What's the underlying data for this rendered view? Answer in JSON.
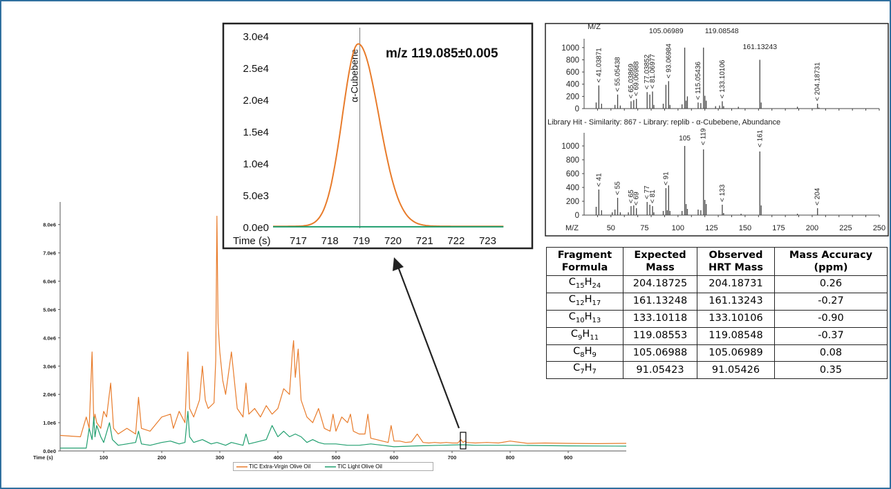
{
  "chart_data": [
    {
      "type": "line",
      "xlabel": "Time (s)",
      "xlim": [
        25,
        1000
      ],
      "ylim": [
        0,
        8800000
      ],
      "xticks": [
        "100",
        "200",
        "300",
        "400",
        "500",
        "600",
        "700",
        "800",
        "900"
      ],
      "yticks": [
        "0.0e0",
        "1.0e6",
        "2.0e6",
        "3.0e6",
        "4.0e6",
        "5.0e6",
        "6.0e6",
        "7.0e6",
        "8.0e6"
      ],
      "series": [
        {
          "name": "TIC Extra-Virgin Olive Oil",
          "color": "#e87b2a",
          "x": [
            25,
            60,
            70,
            75,
            80,
            83,
            85,
            88,
            95,
            100,
            105,
            112,
            117,
            125,
            140,
            155,
            160,
            165,
            180,
            200,
            215,
            220,
            230,
            240,
            245,
            248,
            255,
            265,
            270,
            275,
            280,
            290,
            293,
            295,
            297,
            300,
            305,
            310,
            320,
            330,
            340,
            345,
            350,
            360,
            370,
            380,
            390,
            400,
            410,
            420,
            425,
            427,
            430,
            435,
            440,
            450,
            460,
            470,
            480,
            490,
            495,
            500,
            510,
            520,
            525,
            530,
            540,
            550,
            555,
            560,
            570,
            580,
            590,
            595,
            600,
            610,
            620,
            630,
            640,
            650,
            660,
            670,
            680,
            690,
            700,
            710,
            715,
            719,
            722,
            725,
            740,
            760,
            780,
            800,
            830,
            860,
            900,
            950,
            1000
          ],
          "y": [
            550000,
            500000,
            1200000,
            800000,
            3500000,
            1000000,
            1300000,
            1000000,
            800000,
            1400000,
            1200000,
            2400000,
            800000,
            600000,
            800000,
            600000,
            1900000,
            800000,
            700000,
            1200000,
            1300000,
            800000,
            1400000,
            1000000,
            3500000,
            1500000,
            1200000,
            1800000,
            3000000,
            1800000,
            1500000,
            1700000,
            3200000,
            8300000,
            4500000,
            3500000,
            2500000,
            2000000,
            3500000,
            1500000,
            1200000,
            2400000,
            1300000,
            1500000,
            1200000,
            1600000,
            1300000,
            1500000,
            2200000,
            2000000,
            3500000,
            3900000,
            2600000,
            3600000,
            1800000,
            1200000,
            1000000,
            1500000,
            800000,
            700000,
            1300000,
            700000,
            1200000,
            1000000,
            1300000,
            700000,
            600000,
            600000,
            1300000,
            450000,
            400000,
            350000,
            300000,
            900000,
            350000,
            350000,
            300000,
            320000,
            600000,
            300000,
            280000,
            300000,
            280000,
            300000,
            280000,
            280000,
            400000,
            300000,
            350000,
            300000,
            280000,
            300000,
            280000,
            350000,
            270000,
            280000,
            270000,
            260000,
            270000
          ]
        },
        {
          "name": "TIC Light Olive Oil",
          "color": "#1f9e6e",
          "x": [
            25,
            70,
            75,
            80,
            83,
            85,
            88,
            95,
            100,
            110,
            115,
            125,
            140,
            155,
            160,
            165,
            180,
            200,
            215,
            230,
            240,
            245,
            248,
            255,
            270,
            285,
            295,
            310,
            320,
            330,
            340,
            345,
            350,
            370,
            380,
            390,
            400,
            410,
            420,
            430,
            440,
            450,
            460,
            470,
            480,
            500,
            520,
            540,
            560,
            580,
            600,
            640,
            680,
            719,
            740,
            800,
            900,
            1000
          ],
          "y": [
            100000,
            100000,
            800000,
            400000,
            1200000,
            500000,
            900000,
            500000,
            300000,
            1000000,
            400000,
            200000,
            250000,
            300000,
            700000,
            250000,
            200000,
            300000,
            350000,
            250000,
            300000,
            1400000,
            500000,
            300000,
            400000,
            250000,
            300000,
            200000,
            300000,
            250000,
            200000,
            600000,
            250000,
            350000,
            400000,
            900000,
            500000,
            700000,
            500000,
            600000,
            500000,
            300000,
            400000,
            300000,
            250000,
            250000,
            200000,
            200000,
            250000,
            200000,
            150000,
            180000,
            200000,
            220000,
            200000,
            200000,
            180000,
            170000
          ]
        }
      ]
    },
    {
      "type": "line",
      "title": "m/z 119.085±0.005",
      "xlabel": "Time (s)",
      "xticks": [
        "717",
        "718",
        "719",
        "720",
        "721",
        "722",
        "723"
      ],
      "yticks": [
        "0.0e0",
        "5.0e3",
        "1.0e4",
        "1.5e4",
        "2.0e4",
        "2.5e4",
        "3.0e4"
      ],
      "xlim": [
        716.2,
        723.8
      ],
      "ylim": [
        0,
        31000
      ],
      "marker": {
        "x": 718.95,
        "label": "α-Cubebene"
      },
      "series": [
        {
          "color": "#e87b2a",
          "peak_center": 718.9,
          "peak_height": 28700,
          "peak_sigma_left": 0.5,
          "peak_sigma_right": 0.65,
          "baseline": 200
        },
        {
          "color": "#1f9e6e",
          "constant": 120
        }
      ]
    },
    {
      "type": "bar",
      "subtype": "mass-spectrum",
      "yticks": [
        "0",
        "200",
        "400",
        "600",
        "800",
        "1000"
      ],
      "xlim": [
        30,
        250
      ],
      "ylim": [
        0,
        1100
      ],
      "bars": [
        [
          39,
          100
        ],
        [
          41,
          380
        ],
        [
          43,
          80
        ],
        [
          53,
          60
        ],
        [
          55,
          230
        ],
        [
          57,
          50
        ],
        [
          65,
          120
        ],
        [
          67,
          140
        ],
        [
          69,
          160
        ],
        [
          77,
          270
        ],
        [
          79,
          230
        ],
        [
          81,
          280
        ],
        [
          82,
          60
        ],
        [
          89,
          80
        ],
        [
          91,
          390
        ],
        [
          93,
          450
        ],
        [
          94,
          60
        ],
        [
          103,
          70
        ],
        [
          105,
          1000
        ],
        [
          106,
          130
        ],
        [
          107,
          200
        ],
        [
          115,
          100
        ],
        [
          117,
          90
        ],
        [
          119,
          1000
        ],
        [
          120,
          210
        ],
        [
          121,
          130
        ],
        [
          128,
          40
        ],
        [
          131,
          50
        ],
        [
          133,
          120
        ],
        [
          134,
          40
        ],
        [
          145,
          30
        ],
        [
          161,
          800
        ],
        [
          162,
          100
        ],
        [
          189,
          30
        ],
        [
          204,
          80
        ],
        [
          205,
          15
        ]
      ],
      "labels": [
        {
          "text": "41.03871",
          "x": 41,
          "y": 380
        },
        {
          "text": "55.05438",
          "x": 55,
          "y": 230
        },
        {
          "text": "65.03869",
          "x": 65,
          "y": 120
        },
        {
          "text": "69.06988",
          "x": 69,
          "y": 160
        },
        {
          "text": "77.03852",
          "x": 77,
          "y": 270
        },
        {
          "text": "81.06977",
          "x": 81,
          "y": 280
        },
        {
          "text": "93.06984",
          "x": 93,
          "y": 450
        },
        {
          "text": "115.05436",
          "x": 115,
          "y": 100
        },
        {
          "text": "133.10106",
          "x": 133,
          "y": 120
        },
        {
          "text": "204.18731",
          "x": 204,
          "y": 80
        }
      ],
      "top_labels": [
        {
          "text": "105.06989",
          "x": 105,
          "y": 1000
        },
        {
          "text": "119.08548",
          "x": 119,
          "y": 1000
        },
        {
          "text": "161.13243",
          "x": 161,
          "y": 800
        }
      ],
      "corner_label": "M/Z"
    },
    {
      "type": "bar",
      "subtype": "mass-spectrum",
      "title": "Library Hit - Similarity: 867 - Library: replib - α-Cubebene, Abundance",
      "xlabel": "M/Z",
      "xticks": [
        "50",
        "75",
        "100",
        "125",
        "150",
        "175",
        "200",
        "225",
        "250"
      ],
      "yticks": [
        "0",
        "200",
        "400",
        "600",
        "800",
        "1000"
      ],
      "xlim": [
        30,
        250
      ],
      "ylim": [
        0,
        1150
      ],
      "bars": [
        [
          39,
          120
        ],
        [
          41,
          370
        ],
        [
          43,
          70
        ],
        [
          51,
          40
        ],
        [
          53,
          80
        ],
        [
          55,
          250
        ],
        [
          57,
          40
        ],
        [
          63,
          40
        ],
        [
          65,
          130
        ],
        [
          67,
          140
        ],
        [
          69,
          100
        ],
        [
          77,
          190
        ],
        [
          79,
          150
        ],
        [
          81,
          130
        ],
        [
          82,
          40
        ],
        [
          89,
          60
        ],
        [
          91,
          390
        ],
        [
          92,
          70
        ],
        [
          93,
          430
        ],
        [
          94,
          60
        ],
        [
          103,
          60
        ],
        [
          105,
          1000
        ],
        [
          106,
          160
        ],
        [
          107,
          90
        ],
        [
          115,
          80
        ],
        [
          117,
          70
        ],
        [
          119,
          950
        ],
        [
          120,
          220
        ],
        [
          121,
          160
        ],
        [
          133,
          150
        ],
        [
          134,
          30
        ],
        [
          147,
          20
        ],
        [
          161,
          920
        ],
        [
          162,
          140
        ],
        [
          189,
          20
        ],
        [
          204,
          100
        ]
      ],
      "labels": [
        {
          "text": "41",
          "x": 41,
          "y": 370
        },
        {
          "text": "55",
          "x": 55,
          "y": 250
        },
        {
          "text": "65",
          "x": 65,
          "y": 130
        },
        {
          "text": "69",
          "x": 69,
          "y": 100
        },
        {
          "text": "77",
          "x": 77,
          "y": 190
        },
        {
          "text": "81",
          "x": 81,
          "y": 130
        },
        {
          "text": "91",
          "x": 91,
          "y": 390
        },
        {
          "text": "133",
          "x": 133,
          "y": 150
        },
        {
          "text": "204",
          "x": 204,
          "y": 100
        }
      ],
      "top_labels": [
        {
          "text": "105",
          "x": 105,
          "y": 1000
        },
        {
          "text": "119",
          "x": 119,
          "y": 950
        },
        {
          "text": "161",
          "x": 161,
          "y": 920
        }
      ]
    }
  ],
  "table": {
    "headers": [
      [
        "Fragment",
        "Formula"
      ],
      [
        "Expected",
        "Mass"
      ],
      [
        "Observed",
        "HRT Mass"
      ],
      [
        "Mass Accuracy",
        "(ppm)"
      ]
    ],
    "rows": [
      {
        "formula_parts": [
          "C",
          "15",
          "H",
          "24"
        ],
        "expected": "204.18725",
        "observed": "204.18731",
        "ppm": "0.26"
      },
      {
        "formula_parts": [
          "C",
          "12",
          "H",
          "17"
        ],
        "expected": "161.13248",
        "observed": "161.13243",
        "ppm": "-0.27"
      },
      {
        "formula_parts": [
          "C",
          "10",
          "H",
          "13"
        ],
        "expected": "133.10118",
        "observed": "133.10106",
        "ppm": "-0.90"
      },
      {
        "formula_parts": [
          "C",
          "9",
          "H",
          "11"
        ],
        "expected": "119.08553",
        "observed": "119.08548",
        "ppm": "-0.37"
      },
      {
        "formula_parts": [
          "C",
          "8",
          "H",
          "9"
        ],
        "expected": "105.06988",
        "observed": "105.06989",
        "ppm": "0.08"
      },
      {
        "formula_parts": [
          "C",
          "7",
          "H",
          "7"
        ],
        "expected": "91.05423",
        "observed": "91.05426",
        "ppm": "0.35"
      }
    ]
  }
}
